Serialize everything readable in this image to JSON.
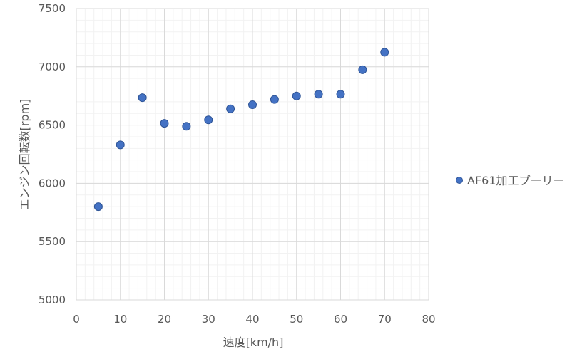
{
  "chart_data": {
    "type": "scatter",
    "title": "",
    "xlabel": "速度[km/h]",
    "ylabel": "エンジン回転数[rpm]",
    "xlim": [
      0,
      80
    ],
    "ylim": [
      5000,
      7500
    ],
    "x_ticks": [
      "0",
      "10",
      "20",
      "30",
      "40",
      "50",
      "60",
      "70",
      "80"
    ],
    "y_ticks": [
      "5000",
      "5500",
      "6000",
      "6500",
      "7000",
      "7500"
    ],
    "grid": true,
    "minor_grid": true,
    "legend_position": "right",
    "series": [
      {
        "name": "AF61加工プーリー",
        "color": "#4472C4",
        "x": [
          5,
          10,
          15,
          20,
          25,
          30,
          35,
          40,
          45,
          50,
          55,
          60,
          65,
          70
        ],
        "y": [
          5800,
          6330,
          6735,
          6515,
          6490,
          6545,
          6640,
          6675,
          6720,
          6750,
          6765,
          6765,
          6975,
          7125
        ]
      }
    ]
  }
}
